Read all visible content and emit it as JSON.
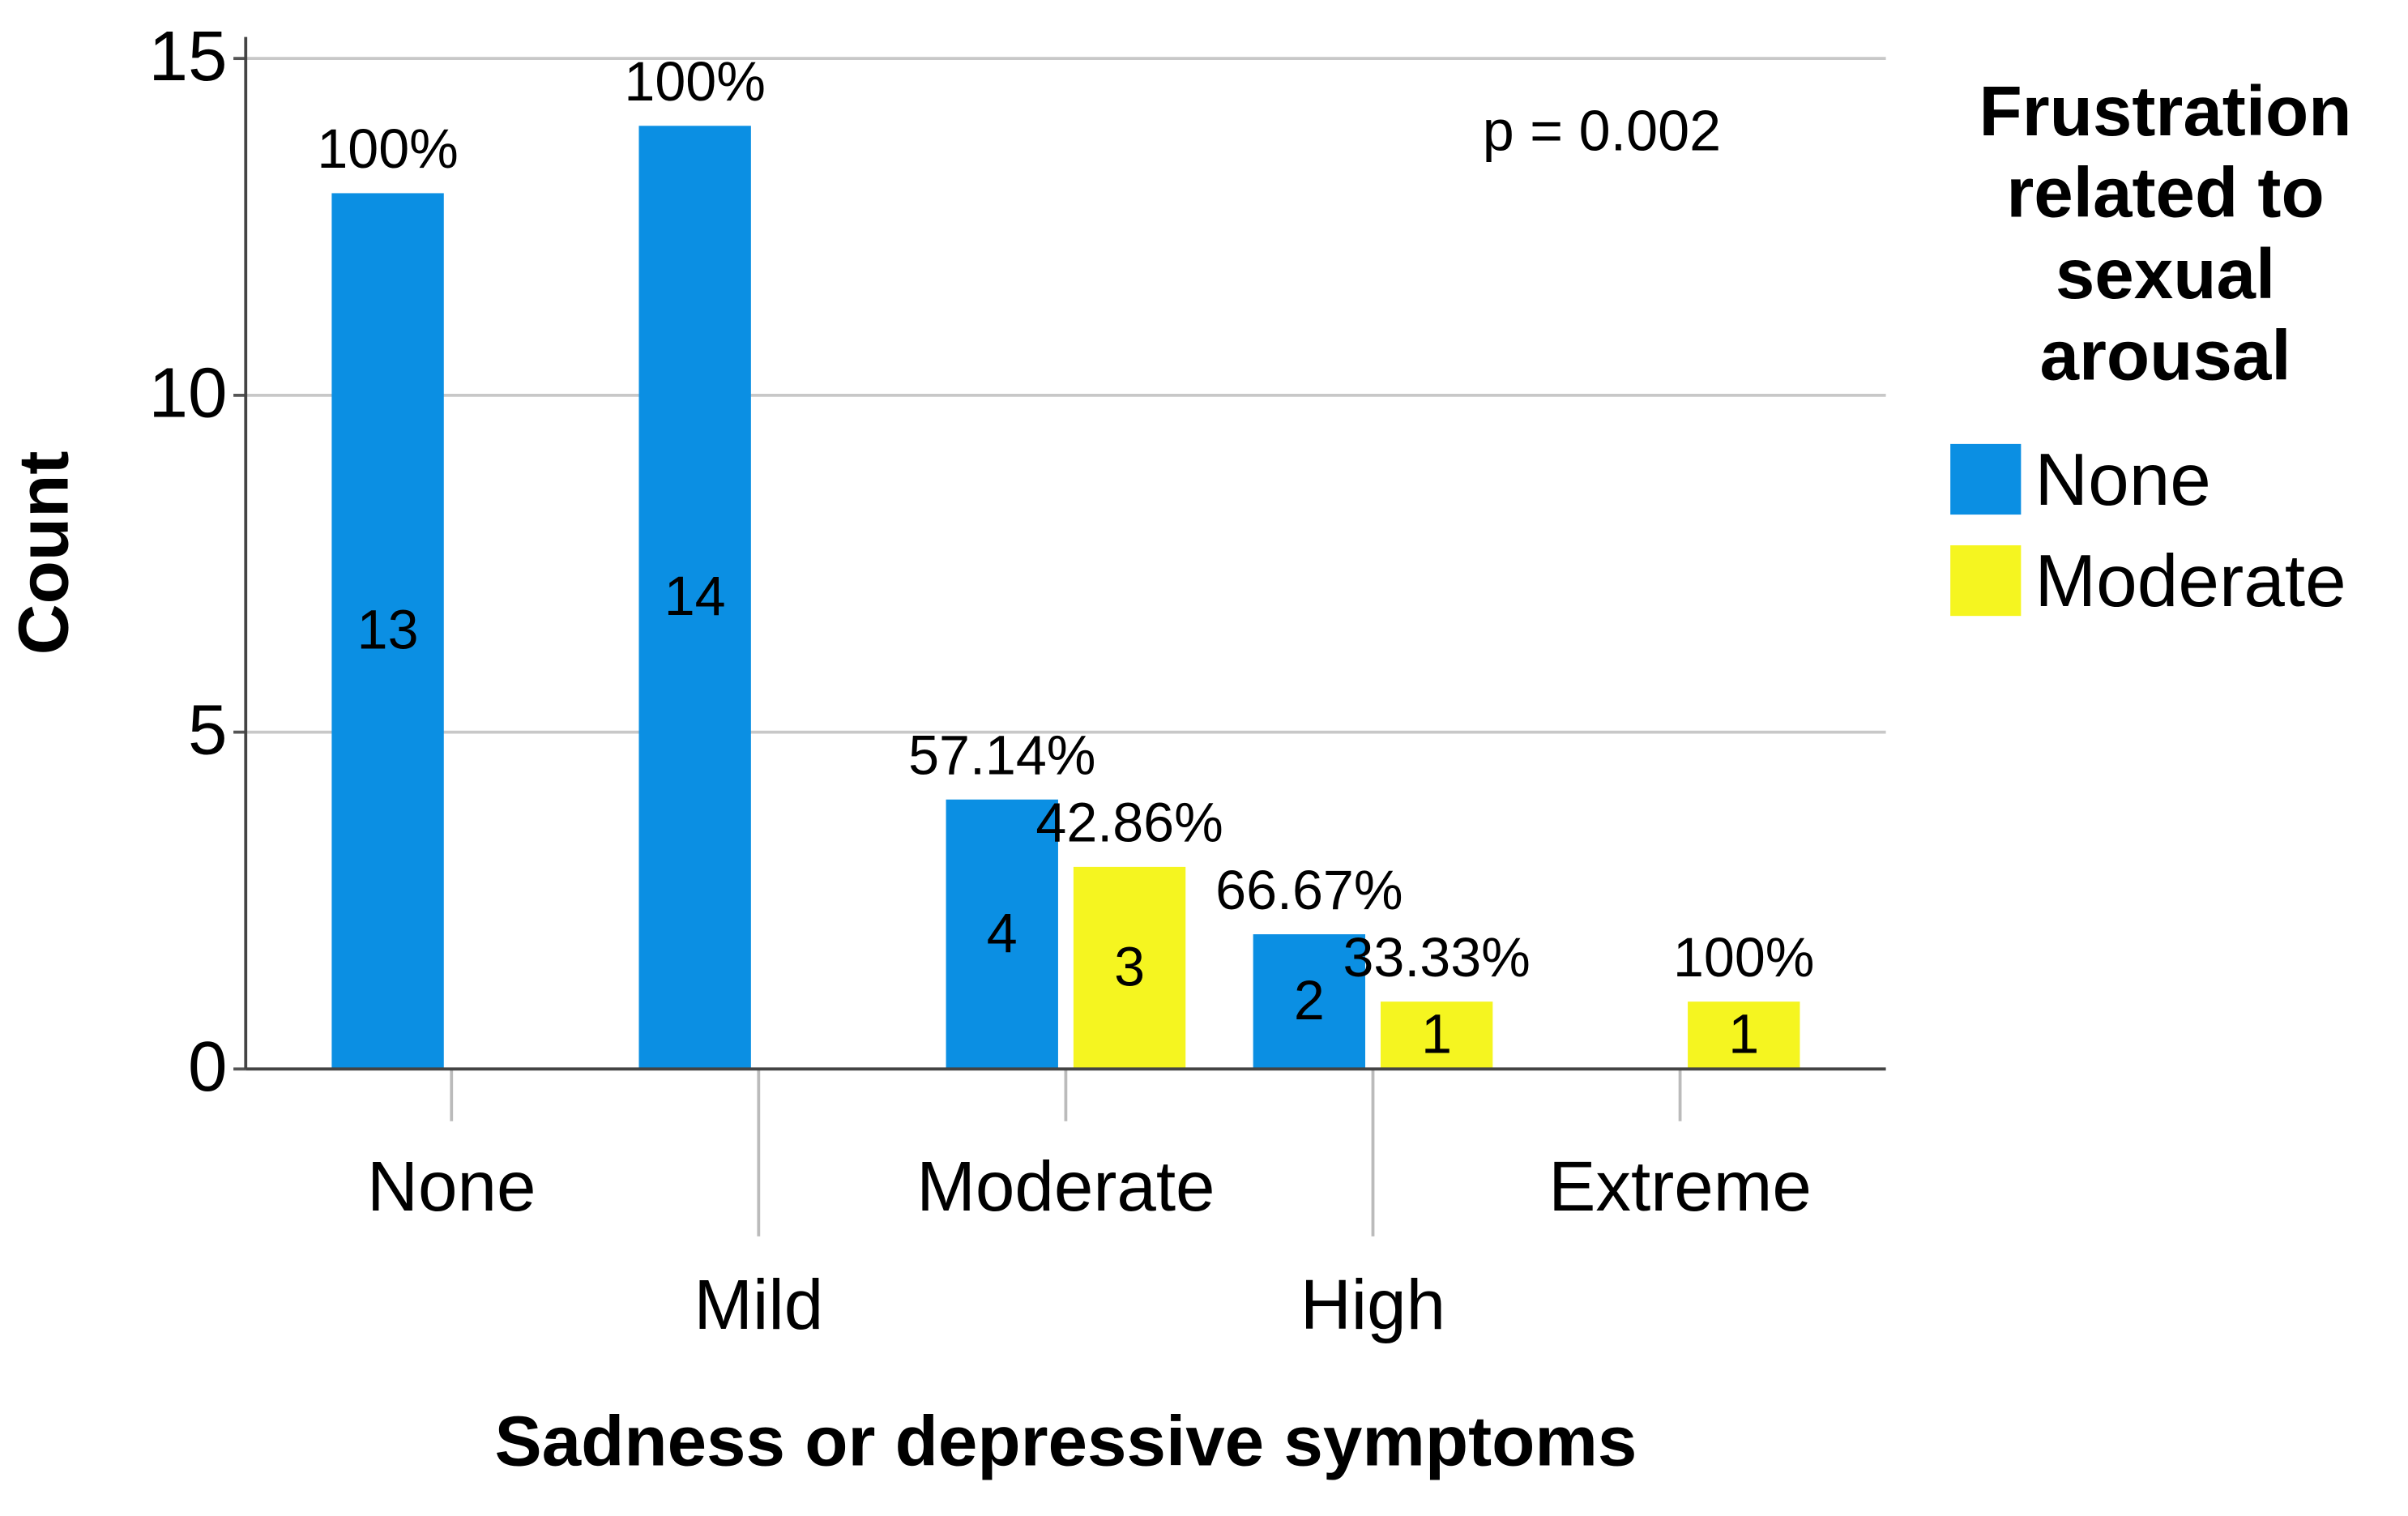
{
  "chart_data": {
    "type": "bar",
    "x_label": "Sadness or depressive symptoms",
    "y_label": "Count",
    "annotation": "p = 0.002",
    "legend_title": [
      "Frustration",
      "related to",
      "sexual",
      "arousal"
    ],
    "legend_position": "right",
    "categories": [
      "None",
      "Mild",
      "Moderate",
      "High",
      "Extreme"
    ],
    "series": [
      {
        "name": "None",
        "color": "#0b8fe3",
        "values": [
          13,
          14,
          4,
          2,
          null
        ],
        "percent_labels": [
          "100%",
          "100%",
          "57.14%",
          "66.67%",
          null
        ]
      },
      {
        "name": "Moderate",
        "color": "#f5f520",
        "values": [
          null,
          null,
          3,
          1,
          1
        ],
        "percent_labels": [
          null,
          null,
          "42.86%",
          "33.33%",
          "100%"
        ]
      }
    ],
    "ylim": [
      0,
      15
    ],
    "yticks": [
      0,
      5,
      10,
      15
    ],
    "grid": true
  }
}
